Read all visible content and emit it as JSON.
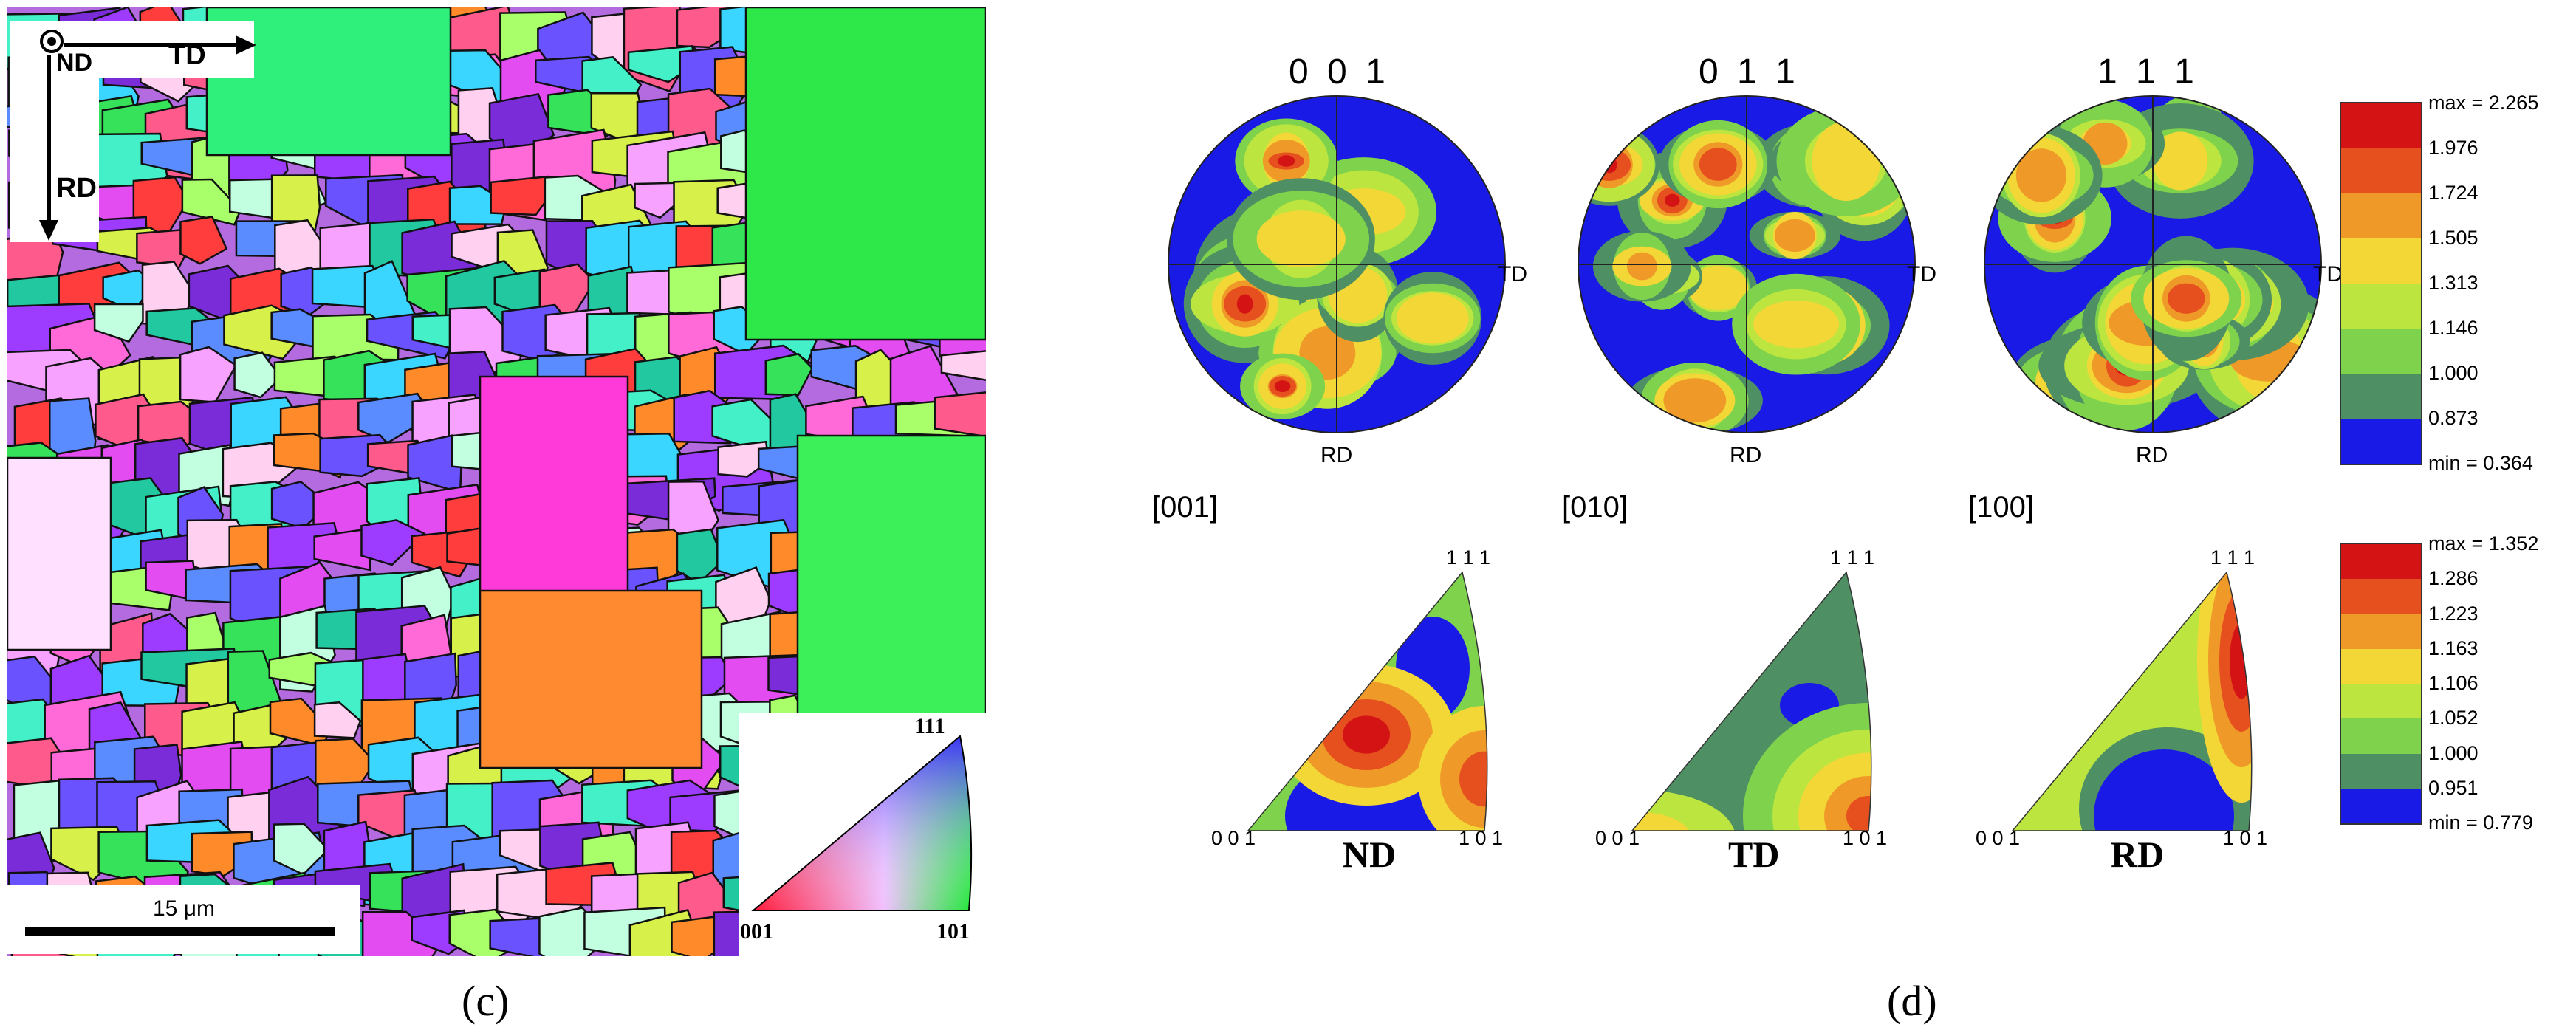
{
  "panel_c": {
    "caption": "(c)",
    "axes": {
      "nd": "ND",
      "td": "TD",
      "rd": "RD"
    },
    "scale_bar": "15 μm",
    "key": {
      "top": "111",
      "left": "001",
      "right": "101"
    }
  },
  "panel_d": {
    "caption": "(d)",
    "pole_figures": [
      {
        "title": "0 0 1",
        "td": "TD",
        "rd": "RD"
      },
      {
        "title": "0 1 1",
        "td": "TD",
        "rd": "RD"
      },
      {
        "title": "1 1 1",
        "td": "TD",
        "rd": "RD"
      }
    ],
    "directions": [
      "[001]",
      "[010]",
      "[100]"
    ],
    "inverse_pole_figures": [
      {
        "label": "ND",
        "top": "1 1 1",
        "left": "0 0 1",
        "right": "1 0 1"
      },
      {
        "label": "TD",
        "top": "1 1 1",
        "left": "0 0 1",
        "right": "1 0 1"
      },
      {
        "label": "RD",
        "top": "1 1 1",
        "left": "0 0 1",
        "right": "1 0 1"
      }
    ],
    "legend_pf": [
      "max = 2.265",
      "1.976",
      "1.724",
      "1.505",
      "1.313",
      "1.146",
      "1.000",
      "0.873",
      "min = 0.364"
    ],
    "legend_ipf": [
      "max = 1.352",
      "1.286",
      "1.223",
      "1.163",
      "1.106",
      "1.052",
      "1.000",
      "0.951",
      "min = 0.779"
    ],
    "legend_colors": [
      "#d41414",
      "#e5501e",
      "#ef9a28",
      "#f2d737",
      "#bde53f",
      "#7fd34c",
      "#4f8f64",
      "#1a1ae6"
    ]
  }
}
